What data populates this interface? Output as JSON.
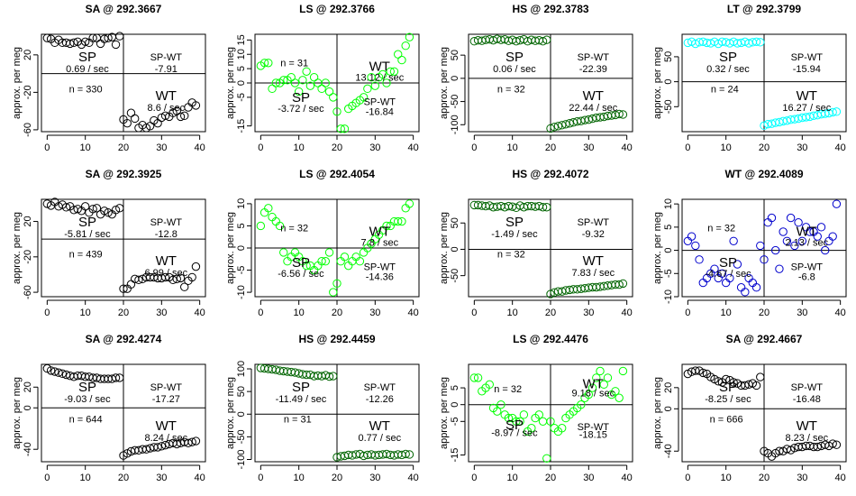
{
  "chart_data": [
    {
      "type": "scatter",
      "title": "SA @ 292.3667",
      "ylabel": "approx. per meg",
      "color": "#000000",
      "ylim": [
        -62,
        42
      ],
      "yticks": [
        -60,
        -20,
        20
      ],
      "xticks": [
        0,
        10,
        20,
        30,
        40
      ],
      "values": [
        38,
        37,
        33,
        36,
        33,
        33,
        32,
        33,
        34,
        31,
        34,
        33,
        38,
        38,
        32,
        37,
        38,
        39,
        31,
        40,
        -49,
        -53,
        -42,
        -48,
        -58,
        -55,
        -58,
        -56,
        -50,
        -53,
        -47,
        -45,
        -46,
        -42,
        -40,
        -46,
        -45,
        -36,
        -31,
        -34
      ],
      "n_label": "n = 330",
      "sp_label": "SP",
      "sp_rate": "0.69 / sec",
      "spwt_label": "SP-WT",
      "spwt_value": "-7.91",
      "wt_label": "WT",
      "wt_rate": "8.6 / sec",
      "pos": {
        "n": [
          0.27,
          0.57
        ],
        "sp": [
          0.28,
          0.24
        ],
        "sprate": [
          0.28,
          0.36
        ],
        "spwt": [
          0.76,
          0.24
        ],
        "spwtv": [
          0.76,
          0.36
        ],
        "wt": [
          0.76,
          0.64
        ],
        "wtrate": [
          0.76,
          0.76
        ]
      }
    },
    {
      "type": "scatter",
      "title": "LS @ 292.3766",
      "ylabel": "approx. per meg",
      "color": "#00ff00",
      "ylim": [
        -17,
        17
      ],
      "yticks": [
        -15,
        -5,
        0,
        5,
        10,
        15
      ],
      "xticks": [
        0,
        10,
        20,
        30,
        40
      ],
      "values": [
        6,
        7,
        7,
        -2,
        0,
        0,
        1,
        1,
        2,
        0,
        -3,
        1,
        4,
        -1,
        2,
        0,
        -2,
        0,
        -3,
        -5,
        -10,
        -16,
        -16,
        -9,
        -8,
        -7,
        -6,
        -5,
        -2,
        2,
        -1,
        2,
        3,
        0,
        4,
        4,
        10,
        8,
        13,
        16
      ],
      "n_label": "n = 31",
      "sp_label": "SP",
      "sp_rate": "-3.72 / sec",
      "spwt_label": "SP-WT",
      "spwt_value": "-16.84",
      "wt_label": "WT",
      "wt_rate": "13.12 / sec",
      "pos": {
        "n": [
          0.24,
          0.3
        ],
        "sp": [
          0.28,
          0.66
        ],
        "sprate": [
          0.28,
          0.77
        ],
        "spwt": [
          0.76,
          0.7
        ],
        "spwtv": [
          0.76,
          0.8
        ],
        "wt": [
          0.76,
          0.34
        ],
        "wtrate": [
          0.76,
          0.45
        ]
      }
    },
    {
      "type": "scatter",
      "title": "HS @ 292.3783",
      "ylabel": "approx. per meg",
      "color": "#006400",
      "ylim": [
        -115,
        95
      ],
      "yticks": [
        -100,
        -50,
        0,
        50
      ],
      "xticks": [
        0,
        10,
        20,
        30,
        40
      ],
      "values": [
        80,
        82,
        81,
        83,
        84,
        82,
        85,
        83,
        84,
        81,
        83,
        80,
        82,
        84,
        80,
        83,
        81,
        82,
        80,
        83,
        -108,
        -105,
        -103,
        -101,
        -99,
        -97,
        -95,
        -93,
        -92,
        -90,
        -89,
        -87,
        -85,
        -84,
        -83,
        -81,
        -80,
        -79,
        -77,
        -78
      ],
      "n_label": "n = 32",
      "sp_label": "SP",
      "sp_rate": "0.06 / sec",
      "spwt_label": "SP-WT",
      "spwt_value": "-22.39",
      "wt_label": "WT",
      "wt_rate": "22.44 / sec",
      "pos": {
        "n": [
          0.26,
          0.57
        ],
        "sp": [
          0.28,
          0.24
        ],
        "sprate": [
          0.28,
          0.36
        ],
        "spwt": [
          0.76,
          0.24
        ],
        "spwtv": [
          0.76,
          0.36
        ],
        "wt": [
          0.76,
          0.64
        ],
        "wtrate": [
          0.76,
          0.76
        ]
      }
    },
    {
      "type": "scatter",
      "title": "LT @ 292.3799",
      "ylabel": "approx. per meg",
      "color": "#00ffff",
      "ylim": [
        -100,
        95
      ],
      "yticks": [
        -50,
        0,
        50
      ],
      "xticks": [
        0,
        10,
        20,
        30,
        40
      ],
      "values": [
        78,
        80,
        76,
        79,
        80,
        78,
        77,
        80,
        76,
        80,
        79,
        77,
        80,
        77,
        78,
        80,
        77,
        79,
        80,
        79,
        -88,
        -85,
        -84,
        -82,
        -81,
        -79,
        -78,
        -76,
        -75,
        -74,
        -72,
        -71,
        -70,
        -68,
        -67,
        -65,
        -64,
        -63,
        -61,
        -60
      ],
      "n_label": "n = 24",
      "sp_label": "SP",
      "sp_rate": "0.32 / sec",
      "spwt_label": "SP-WT",
      "spwt_value": "-15.94",
      "wt_label": "WT",
      "wt_rate": "16.27 / sec",
      "pos": {
        "n": [
          0.26,
          0.57
        ],
        "sp": [
          0.28,
          0.24
        ],
        "sprate": [
          0.28,
          0.36
        ],
        "spwt": [
          0.76,
          0.24
        ],
        "spwtv": [
          0.76,
          0.36
        ],
        "wt": [
          0.76,
          0.64
        ],
        "wtrate": [
          0.76,
          0.76
        ]
      }
    },
    {
      "type": "scatter",
      "title": "SA @ 292.3925",
      "ylabel": "approx. per meg",
      "color": "#000000",
      "ylim": [
        -65,
        45
      ],
      "yticks": [
        -60,
        -20,
        20
      ],
      "xticks": [
        0,
        10,
        20,
        30,
        40
      ],
      "values": [
        40,
        38,
        42,
        37,
        39,
        36,
        37,
        33,
        34,
        32,
        37,
        30,
        34,
        35,
        28,
        32,
        30,
        28,
        33,
        35,
        -56,
        -56,
        -51,
        -45,
        -46,
        -45,
        -43,
        -43,
        -43,
        -44,
        -44,
        -43,
        -43,
        -46,
        -45,
        -44,
        -54,
        -47,
        -43,
        -31
      ],
      "n_label": "n = 439",
      "sp_label": "SP",
      "sp_rate": "-5.81 / sec",
      "spwt_label": "SP-WT",
      "spwt_value": "-12.8",
      "wt_label": "WT",
      "wt_rate": "6.99 / sec",
      "pos": {
        "n": [
          0.27,
          0.57
        ],
        "sp": [
          0.28,
          0.24
        ],
        "sprate": [
          0.28,
          0.36
        ],
        "spwt": [
          0.76,
          0.24
        ],
        "spwtv": [
          0.76,
          0.36
        ],
        "wt": [
          0.76,
          0.64
        ],
        "wtrate": [
          0.76,
          0.76
        ]
      }
    },
    {
      "type": "scatter",
      "title": "LS @ 292.4054",
      "ylabel": "approx. per meg",
      "color": "#00ff00",
      "ylim": [
        -11,
        11
      ],
      "yticks": [
        -10,
        -5,
        0,
        5,
        10
      ],
      "xticks": [
        0,
        10,
        20,
        30,
        40
      ],
      "values": [
        5,
        8,
        9,
        7,
        6,
        5,
        -1,
        -3,
        -2,
        -1,
        -2,
        -3,
        -4,
        -4,
        -5,
        -4,
        -3,
        -3,
        -1,
        -10,
        -8,
        -3,
        -2,
        -4,
        -3,
        -2,
        -3,
        -1,
        0,
        1,
        2,
        3,
        4,
        5,
        5,
        6,
        6,
        6,
        9,
        10
      ],
      "n_label": "n = 32",
      "sp_label": "SP",
      "sp_rate": "-6.56 / sec",
      "spwt_label": "SP-WT",
      "spwt_value": "-14.36",
      "wt_label": "WT",
      "wt_rate": "7.8 / sec",
      "pos": {
        "n": [
          0.24,
          0.3
        ],
        "sp": [
          0.28,
          0.66
        ],
        "sprate": [
          0.28,
          0.77
        ],
        "spwt": [
          0.76,
          0.7
        ],
        "spwtv": [
          0.76,
          0.8
        ],
        "wt": [
          0.76,
          0.34
        ],
        "wtrate": [
          0.76,
          0.45
        ]
      }
    },
    {
      "type": "scatter",
      "title": "HS @ 292.4072",
      "ylabel": "approx. per meg",
      "color": "#006400",
      "ylim": [
        -90,
        95
      ],
      "yticks": [
        -50,
        0,
        50
      ],
      "xticks": [
        0,
        10,
        20,
        30,
        40
      ],
      "values": [
        84,
        84,
        83,
        82,
        83,
        80,
        81,
        82,
        80,
        82,
        81,
        79,
        83,
        80,
        82,
        82,
        81,
        82,
        80,
        80,
        -85,
        -82,
        -80,
        -80,
        -78,
        -77,
        -76,
        -76,
        -75,
        -74,
        -73,
        -72,
        -72,
        -71,
        -70,
        -69,
        -68,
        -67,
        -67,
        -65
      ],
      "n_label": "n = 32",
      "sp_label": "SP",
      "sp_rate": "-1.49 / sec",
      "spwt_label": "SP-WT",
      "spwt_value": "-9.32",
      "wt_label": "WT",
      "wt_rate": "7.83 / sec",
      "pos": {
        "n": [
          0.26,
          0.57
        ],
        "sp": [
          0.28,
          0.24
        ],
        "sprate": [
          0.28,
          0.36
        ],
        "spwt": [
          0.76,
          0.24
        ],
        "spwtv": [
          0.76,
          0.36
        ],
        "wt": [
          0.76,
          0.64
        ],
        "wtrate": [
          0.76,
          0.76
        ]
      }
    },
    {
      "type": "scatter",
      "title": "WT @ 292.4089",
      "ylabel": "approx. per meg",
      "color": "#0000cd",
      "ylim": [
        -10,
        11
      ],
      "yticks": [
        -10,
        -5,
        0,
        5,
        10
      ],
      "xticks": [
        0,
        10,
        20,
        30,
        40
      ],
      "values": [
        2,
        3,
        1,
        -2,
        -7,
        -6,
        -5,
        -4,
        -6,
        -5,
        -7,
        -6,
        2,
        -3,
        -8,
        -9,
        -6,
        -7,
        -8,
        1,
        -2,
        6,
        7,
        0,
        -4,
        4,
        2,
        7,
        1,
        6,
        2,
        5,
        4,
        4,
        3,
        5,
        0,
        2,
        3,
        10
      ],
      "n_label": "n = 32",
      "sp_label": "SP",
      "sp_rate": "-4.67 / sec",
      "spwt_label": "SP-WT",
      "spwt_value": "-6.8",
      "wt_label": "WT",
      "wt_rate": "2.13 / sec",
      "pos": {
        "n": [
          0.24,
          0.3
        ],
        "sp": [
          0.28,
          0.66
        ],
        "sprate": [
          0.28,
          0.77
        ],
        "spwt": [
          0.76,
          0.7
        ],
        "spwtv": [
          0.76,
          0.8
        ],
        "wt": [
          0.76,
          0.34
        ],
        "wtrate": [
          0.76,
          0.45
        ]
      }
    },
    {
      "type": "scatter",
      "title": "SA @ 292.4274",
      "ylabel": "approx. per meg",
      "color": "#000000",
      "ylim": [
        -52,
        42
      ],
      "yticks": [
        -40,
        0,
        20
      ],
      "xticks": [
        0,
        10,
        20,
        30,
        40
      ],
      "values": [
        38,
        36,
        35,
        34,
        33,
        32,
        31,
        30,
        31,
        31,
        30,
        30,
        29,
        29,
        28,
        28,
        28,
        28,
        29,
        29,
        -46,
        -44,
        -42,
        -41,
        -41,
        -40,
        -40,
        -39,
        -38,
        -38,
        -37,
        -36,
        -35,
        -34,
        -35,
        -34,
        -33,
        -34,
        -33,
        -32
      ],
      "n_label": "n = 644",
      "sp_label": "SP",
      "sp_rate": "-9.03 / sec",
      "spwt_label": "SP-WT",
      "spwt_value": "-17.27",
      "wt_label": "WT",
      "wt_rate": "8.24 / sec",
      "pos": {
        "n": [
          0.27,
          0.57
        ],
        "sp": [
          0.28,
          0.24
        ],
        "sprate": [
          0.28,
          0.36
        ],
        "spwt": [
          0.76,
          0.24
        ],
        "spwtv": [
          0.76,
          0.36
        ],
        "wt": [
          0.76,
          0.64
        ],
        "wtrate": [
          0.76,
          0.76
        ]
      }
    },
    {
      "type": "scatter",
      "title": "HS @ 292.4459",
      "ylabel": "approx. per meg",
      "color": "#006400",
      "ylim": [
        -105,
        110
      ],
      "yticks": [
        -100,
        -50,
        0,
        50,
        100
      ],
      "xticks": [
        0,
        10,
        20,
        30,
        40
      ],
      "values": [
        102,
        101,
        100,
        99,
        98,
        96,
        95,
        94,
        93,
        92,
        90,
        88,
        87,
        87,
        84,
        85,
        84,
        86,
        83,
        84,
        -95,
        -93,
        -92,
        -90,
        -91,
        -89,
        -88,
        -92,
        -90,
        -89,
        -91,
        -90,
        -89,
        -88,
        -90,
        -91,
        -89,
        -90,
        -88,
        -89
      ],
      "n_label": "n = 31",
      "sp_label": "SP",
      "sp_rate": "-11.49 / sec",
      "spwt_label": "SP-WT",
      "spwt_value": "-12.26",
      "wt_label": "WT",
      "wt_rate": "0.77 / sec",
      "pos": {
        "n": [
          0.26,
          0.57
        ],
        "sp": [
          0.28,
          0.24
        ],
        "sprate": [
          0.28,
          0.36
        ],
        "spwt": [
          0.76,
          0.24
        ],
        "spwtv": [
          0.76,
          0.36
        ],
        "wt": [
          0.76,
          0.64
        ],
        "wtrate": [
          0.76,
          0.76
        ]
      }
    },
    {
      "type": "scatter",
      "title": "LS @ 292.4476",
      "ylabel": "approx. per meg",
      "color": "#00ff00",
      "ylim": [
        -17,
        12
      ],
      "yticks": [
        -15,
        -5,
        0,
        5
      ],
      "xticks": [
        0,
        10,
        20,
        30,
        40
      ],
      "values": [
        8,
        8,
        4,
        5,
        6,
        -1,
        -2,
        0,
        -3,
        -4,
        -4,
        -5,
        -5,
        -3,
        -8,
        -7,
        -4,
        -3,
        -5,
        -16,
        -5,
        -7,
        -8,
        -7,
        -4,
        -3,
        -2,
        -1,
        0,
        2,
        3,
        5,
        8,
        10,
        6,
        8,
        3,
        4,
        2,
        10
      ],
      "n_label": "n = 32",
      "sp_label": "SP",
      "sp_rate": "-8.97 / sec",
      "spwt_label": "SP-WT",
      "spwt_value": "-18.15",
      "wt_label": "WT",
      "wt_rate": "9.18 / sec",
      "pos": {
        "n": [
          0.24,
          0.26
        ],
        "sp": [
          0.28,
          0.63
        ],
        "sprate": [
          0.28,
          0.71
        ],
        "spwt": [
          0.76,
          0.65
        ],
        "spwtv": [
          0.76,
          0.73
        ],
        "wt": [
          0.76,
          0.21
        ],
        "wtrate": [
          0.76,
          0.3
        ]
      }
    },
    {
      "type": "scatter",
      "title": "SA @ 292.4667",
      "ylabel": "approx. per meg",
      "color": "#000000",
      "ylim": [
        -50,
        42
      ],
      "yticks": [
        -40,
        0,
        20
      ],
      "xticks": [
        0,
        10,
        20,
        30,
        40
      ],
      "values": [
        33,
        35,
        36,
        36,
        34,
        33,
        30,
        28,
        26,
        25,
        28,
        27,
        25,
        24,
        22,
        22,
        23,
        24,
        22,
        30,
        -40,
        -42,
        -45,
        -42,
        -40,
        -40,
        -38,
        -39,
        -37,
        -36,
        -36,
        -35,
        -35,
        -36,
        -36,
        -35,
        -34,
        -35,
        -33,
        -34
      ],
      "n_label": "n = 666",
      "sp_label": "SP",
      "sp_rate": "-8.25 / sec",
      "spwt_label": "SP-WT",
      "spwt_value": "-16.48",
      "wt_label": "WT",
      "wt_rate": "8.23 / sec",
      "pos": {
        "n": [
          0.27,
          0.57
        ],
        "sp": [
          0.28,
          0.24
        ],
        "sprate": [
          0.28,
          0.36
        ],
        "spwt": [
          0.76,
          0.24
        ],
        "spwtv": [
          0.76,
          0.36
        ],
        "wt": [
          0.76,
          0.64
        ],
        "wtrate": [
          0.76,
          0.76
        ]
      }
    }
  ]
}
